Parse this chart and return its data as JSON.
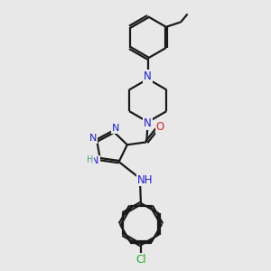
{
  "background_color": "#e8e8e8",
  "bond_color": "#1a1a1a",
  "N_color": "#2020cc",
  "O_color": "#dd2020",
  "Cl_color": "#22aa22",
  "line_width": 1.6,
  "font_size": 8.5,
  "fig_size": [
    3.0,
    3.0
  ],
  "dpi": 100,
  "xlim": [
    0,
    10
  ],
  "ylim": [
    0,
    10
  ]
}
